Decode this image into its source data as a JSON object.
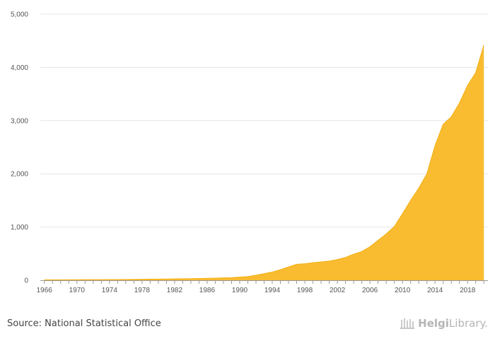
{
  "chart_data": {
    "type": "area",
    "x": [
      1966,
      1967,
      1968,
      1969,
      1970,
      1971,
      1972,
      1973,
      1974,
      1975,
      1976,
      1977,
      1978,
      1979,
      1980,
      1981,
      1982,
      1983,
      1984,
      1985,
      1986,
      1987,
      1988,
      1989,
      1990,
      1991,
      1992,
      1993,
      1994,
      1995,
      1996,
      1997,
      1998,
      1999,
      2000,
      2001,
      2002,
      2003,
      2004,
      2005,
      2006,
      2007,
      2008,
      2009,
      2010,
      2011,
      2012,
      2013,
      2014,
      2015,
      2016,
      2017,
      2018,
      2019,
      2020
    ],
    "series": [
      {
        "values": [
          8,
          9,
          9,
          10,
          10,
          11,
          11,
          12,
          13,
          14,
          15,
          17,
          19,
          21,
          22,
          24,
          26,
          28,
          30,
          33,
          36,
          40,
          45,
          50,
          60,
          70,
          95,
          125,
          155,
          200,
          250,
          300,
          310,
          330,
          345,
          360,
          390,
          430,
          490,
          540,
          630,
          750,
          870,
          1010,
          1250,
          1500,
          1730,
          2000,
          2530,
          2930,
          3070,
          3330,
          3660,
          3900,
          4420
        ]
      }
    ],
    "ylim": [
      0,
      5000
    ],
    "yticks": [
      0,
      1000,
      2000,
      3000,
      4000,
      5000
    ],
    "yticklabels": [
      "0",
      "1,000",
      "2,000",
      "3,000",
      "4,000",
      "5,000"
    ],
    "xticks": [
      1966,
      1970,
      1974,
      1978,
      1982,
      1986,
      1990,
      1994,
      1998,
      2002,
      2006,
      2010,
      2014,
      2018
    ],
    "xticklabels": [
      "1966",
      "1970",
      "1974",
      "1978",
      "1982",
      "1986",
      "1990",
      "1994",
      "1998",
      "2002",
      "2006",
      "2010",
      "2014",
      "2018"
    ],
    "grid": true,
    "fill_color": "#f9bc31"
  },
  "footer": {
    "source": "Source: National Statistical Office",
    "brand_bold": "Helgi",
    "brand_regular": "Library."
  }
}
